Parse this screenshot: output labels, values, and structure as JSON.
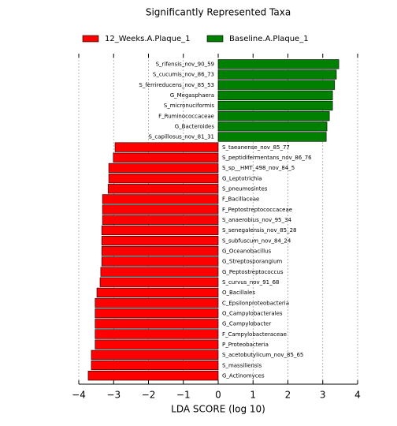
{
  "chart_data": {
    "type": "bar",
    "orientation": "horizontal",
    "title": "Significantly Represented Taxa",
    "xlabel": "LDA SCORE (log 10)",
    "categories": [
      "S_rifensis_nov_90_59",
      "S_cucumis_nov_86_73",
      "S_ferrireducens_nov_85_53",
      "G_Megasphaera",
      "S_micronuciformis",
      "F_Ruminococcaceae",
      "G_Bacteroides",
      "S_capillosus_nov_81_31",
      "S_taeanense_nov_85_77",
      "S_peptidifermentans_nov_86_76",
      "S_sp__HMT_498_nov_84_5",
      "G_Leptotrichia",
      "S_pneumosintes",
      "F_Bacillaceae",
      "F_Peptostreptococcaceae",
      "S_anaerobius_nov_95_34",
      "S_senegalensis_nov_85_28",
      "S_subfuscum_nov_84_24",
      "G_Oceanobacillus",
      "G_Streptosporangium",
      "G_Peptostreptococcus",
      "S_curvus_nov_91_68",
      "O_Bacillales",
      "C_Epsilonproteobacteria",
      "O_Campylobacterales",
      "G_Campylobacter",
      "F_Campylobacteraceae",
      "P_Proteobacteria",
      "S_acetobutylicum_nov_85_65",
      "S_massiliensis",
      "G_Actinomyces"
    ],
    "series": [
      {
        "name": "12_Weeks.A.Plaque_1",
        "color": "#ff0000",
        "values": [
          null,
          null,
          null,
          null,
          null,
          null,
          null,
          null,
          -2.96,
          -3.01,
          -3.14,
          -3.14,
          -3.16,
          -3.32,
          -3.32,
          -3.32,
          -3.34,
          -3.34,
          -3.34,
          -3.34,
          -3.37,
          -3.39,
          -3.48,
          -3.53,
          -3.53,
          -3.53,
          -3.53,
          -3.53,
          -3.64,
          -3.64,
          -3.73
        ]
      },
      {
        "name": "Baseline.A.Plaque_1",
        "color": "#008000",
        "values": [
          3.46,
          3.39,
          3.34,
          3.28,
          3.28,
          3.19,
          3.12,
          3.1,
          null,
          null,
          null,
          null,
          null,
          null,
          null,
          null,
          null,
          null,
          null,
          null,
          null,
          null,
          null,
          null,
          null,
          null,
          null,
          null,
          null,
          null,
          null
        ]
      }
    ],
    "xlim": [
      -4,
      4
    ],
    "xticks": [
      {
        "value": -4,
        "label": "−4"
      },
      {
        "value": -3,
        "label": "−3"
      },
      {
        "value": -2,
        "label": "−2"
      },
      {
        "value": -1,
        "label": "−1"
      },
      0,
      1,
      2,
      3,
      4
    ],
    "grid": true
  }
}
